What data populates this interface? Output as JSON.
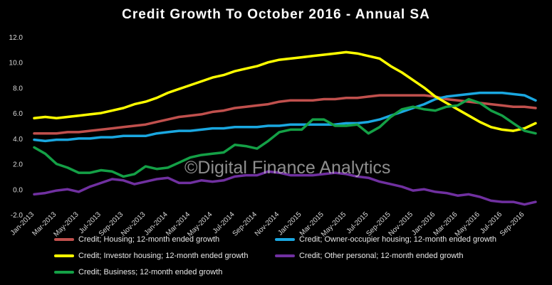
{
  "chart_data": {
    "type": "line",
    "title": "Credit Growth To October 2016 - Annual SA",
    "watermark": "©Digital Finance Analytics",
    "xlabel": "",
    "ylabel": "",
    "ylim": [
      -2.0,
      12.0
    ],
    "yticks": [
      "-2.0",
      "0.0",
      "2.0",
      "4.0",
      "6.0",
      "8.0",
      "10.0",
      "12.0"
    ],
    "grid": false,
    "legend_position": "bottom",
    "x": [
      "Jan-2013",
      "Feb-2013",
      "Mar-2013",
      "Apr-2013",
      "May-2013",
      "Jun-2013",
      "Jul-2013",
      "Aug-2013",
      "Sep-2013",
      "Oct-2013",
      "Nov-2013",
      "Dec-2013",
      "Jan-2014",
      "Feb-2014",
      "Mar-2014",
      "Apr-2014",
      "May-2014",
      "Jun-2014",
      "Jul-2014",
      "Aug-2014",
      "Sep-2014",
      "Oct-2014",
      "Nov-2014",
      "Dec-2014",
      "Jan-2015",
      "Feb-2015",
      "Mar-2015",
      "Apr-2015",
      "May-2015",
      "Jun-2015",
      "Jul-2015",
      "Aug-2015",
      "Sep-2015",
      "Oct-2015",
      "Nov-2015",
      "Dec-2015",
      "Jan-2016",
      "Feb-2016",
      "Mar-2016",
      "Apr-2016",
      "May-2016",
      "Jun-2016",
      "Jul-2016",
      "Aug-2016",
      "Sep-2016",
      "Oct-2016"
    ],
    "tick_labels": [
      "Jan-2013",
      "Mar-2013",
      "May-2013",
      "Jul-2013",
      "Sep-2013",
      "Nov-2013",
      "Jan-2014",
      "Mar-2014",
      "May-2014",
      "Jul-2014",
      "Sep-2014",
      "Nov-2014",
      "Jan-2015",
      "Mar-2015",
      "May-2015",
      "Jul-2015",
      "Sep-2015",
      "Nov-2015",
      "Jan-2016",
      "Mar-2016",
      "May-2016",
      "Jul-2016",
      "Sep-2016"
    ],
    "series": [
      {
        "name": "Credit; Housing; 12-month ended growth",
        "color": "#c0504d",
        "values": [
          4.4,
          4.4,
          4.4,
          4.5,
          4.5,
          4.6,
          4.7,
          4.8,
          4.9,
          5.0,
          5.1,
          5.3,
          5.5,
          5.7,
          5.8,
          5.9,
          6.1,
          6.2,
          6.4,
          6.5,
          6.6,
          6.7,
          6.9,
          7.0,
          7.0,
          7.0,
          7.1,
          7.1,
          7.2,
          7.2,
          7.3,
          7.4,
          7.4,
          7.4,
          7.4,
          7.4,
          7.3,
          7.1,
          7.0,
          6.9,
          6.8,
          6.7,
          6.6,
          6.5,
          6.5,
          6.4
        ]
      },
      {
        "name": "Credit; Owner-occupier housing; 12-month ended growth",
        "color": "#1aa7e0",
        "values": [
          3.9,
          3.8,
          3.9,
          3.9,
          4.0,
          4.0,
          4.1,
          4.1,
          4.2,
          4.2,
          4.2,
          4.4,
          4.5,
          4.6,
          4.6,
          4.7,
          4.8,
          4.8,
          4.9,
          4.9,
          4.9,
          5.0,
          5.0,
          5.1,
          5.1,
          5.1,
          5.1,
          5.1,
          5.2,
          5.2,
          5.3,
          5.5,
          5.8,
          6.1,
          6.4,
          6.7,
          7.1,
          7.3,
          7.4,
          7.5,
          7.6,
          7.6,
          7.6,
          7.5,
          7.4,
          7.0
        ]
      },
      {
        "name": "Credit; Investor housing; 12-month ended growth",
        "color": "#ffff00",
        "values": [
          5.6,
          5.7,
          5.6,
          5.7,
          5.8,
          5.9,
          6.0,
          6.2,
          6.4,
          6.7,
          6.9,
          7.2,
          7.6,
          7.9,
          8.2,
          8.5,
          8.8,
          9.0,
          9.3,
          9.5,
          9.7,
          10.0,
          10.2,
          10.3,
          10.4,
          10.5,
          10.6,
          10.7,
          10.8,
          10.7,
          10.5,
          10.3,
          9.7,
          9.2,
          8.6,
          8.0,
          7.3,
          6.8,
          6.3,
          5.8,
          5.3,
          4.9,
          4.7,
          4.6,
          4.8,
          5.2
        ]
      },
      {
        "name": "Credit; Other personal; 12-month ended growth",
        "color": "#7030a0",
        "values": [
          -0.4,
          -0.3,
          -0.1,
          0.0,
          -0.2,
          0.2,
          0.5,
          0.8,
          0.7,
          0.4,
          0.6,
          0.8,
          0.9,
          0.5,
          0.5,
          0.7,
          0.6,
          0.7,
          1.0,
          1.1,
          1.1,
          1.4,
          1.3,
          1.1,
          1.1,
          1.1,
          1.2,
          1.3,
          1.2,
          1.0,
          0.9,
          0.6,
          0.4,
          0.2,
          -0.1,
          0.0,
          -0.2,
          -0.3,
          -0.5,
          -0.4,
          -0.6,
          -0.9,
          -1.0,
          -1.0,
          -1.2,
          -1.0
        ]
      },
      {
        "name": "Credit; Business; 12-month ended growth",
        "color": "#14a046",
        "values": [
          3.3,
          2.8,
          2.0,
          1.7,
          1.3,
          1.3,
          1.5,
          1.4,
          1.0,
          1.2,
          1.8,
          1.6,
          1.7,
          2.1,
          2.5,
          2.7,
          2.8,
          2.9,
          3.5,
          3.4,
          3.2,
          3.8,
          4.5,
          4.7,
          4.7,
          5.5,
          5.5,
          5.0,
          5.0,
          5.1,
          4.4,
          4.9,
          5.7,
          6.3,
          6.5,
          6.3,
          6.2,
          6.5,
          6.6,
          7.1,
          6.8,
          6.2,
          5.8,
          5.2,
          4.6,
          4.4
        ]
      }
    ]
  }
}
